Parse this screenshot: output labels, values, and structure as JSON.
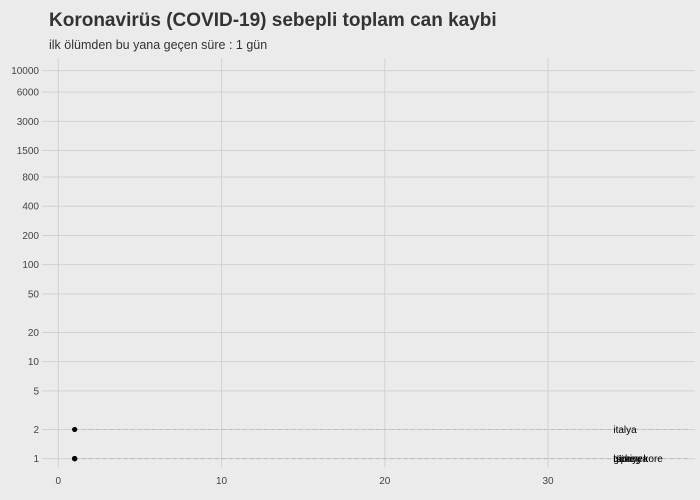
{
  "chart_data": {
    "type": "line",
    "title": "Koronavirüs (COVID-19) sebepli toplam can kaybi",
    "subtitle": "ilk ölümden bu yana geçen süre : 1 gün",
    "xlabel": "",
    "ylabel": "",
    "x_scale": "linear",
    "y_scale": "log",
    "xlim": [
      -1,
      39
    ],
    "ylim": [
      0.82,
      13500
    ],
    "x_ticks": [
      0,
      10,
      20,
      30
    ],
    "y_ticks": [
      1,
      2,
      5,
      10,
      20,
      50,
      100,
      200,
      400,
      800,
      1500,
      3000,
      6000,
      10000
    ],
    "grid": true,
    "legend": "none",
    "series": [
      {
        "name": "italya",
        "x": [
          1
        ],
        "y": [
          2
        ],
        "label_x": 34,
        "color": "#000000"
      },
      {
        "name": "türkiye",
        "x": [
          1
        ],
        "y": [
          1
        ],
        "label_x": 34,
        "color": "#000000"
      },
      {
        "name": "ispanya",
        "x": [
          1
        ],
        "y": [
          1
        ],
        "label_x": 34,
        "color": "#000000"
      },
      {
        "name": "güney kore",
        "x": [
          1
        ],
        "y": [
          1
        ],
        "label_x": 34,
        "color": "#000000"
      }
    ],
    "colors": {
      "background": "#ebebeb",
      "grid": "#d2d2d2",
      "reference_line": "#bdbdbd",
      "point": "#000000"
    }
  }
}
